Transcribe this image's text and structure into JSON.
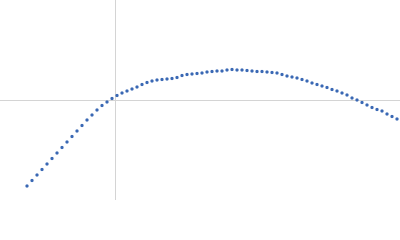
{
  "chart_data": {
    "type": "scatter",
    "x": [
      -88,
      -83,
      -78,
      -73,
      -68,
      -63,
      -58,
      -53,
      -48,
      -43,
      -38,
      -33,
      -28,
      -23,
      -18,
      -13,
      -8,
      -3,
      2,
      7,
      12,
      17,
      22,
      27,
      32,
      37,
      42,
      47,
      52,
      57,
      62,
      67,
      72,
      77,
      82,
      87,
      92,
      97,
      102,
      107,
      112,
      117,
      122,
      127,
      132,
      137,
      142,
      147,
      152,
      157,
      162,
      167,
      172,
      177,
      182,
      187,
      192,
      197,
      202,
      207,
      212,
      217,
      222,
      227,
      232,
      237,
      242,
      247,
      252,
      257,
      262,
      267,
      272,
      277,
      282
    ],
    "values": [
      -86,
      -80.5,
      -75,
      -69.5,
      -64,
      -58.5,
      -53,
      -47.5,
      -42,
      -36.5,
      -31,
      -25.5,
      -20,
      -15,
      -10,
      -5.5,
      -2,
      1.5,
      4.5,
      7,
      9,
      11,
      13,
      15.5,
      17.5,
      19,
      20,
      20.5,
      21,
      21.5,
      22.5,
      24.5,
      25.5,
      26,
      26.5,
      27,
      28,
      28.5,
      29,
      29,
      30,
      30.5,
      30,
      30,
      29.5,
      29,
      28.5,
      28.5,
      28,
      27.5,
      27,
      25.5,
      24,
      23,
      22,
      20.5,
      19,
      17,
      15.5,
      14,
      12.5,
      10.5,
      9,
      7,
      5,
      2,
      0,
      -2.5,
      -5,
      -7.5,
      -9.5,
      -11,
      -14,
      -16.5,
      -19
    ],
    "color": "#3a68b4",
    "xlim": [
      -115,
      285
    ],
    "ylim": [
      -100,
      100
    ],
    "xticks": [
      0
    ],
    "yticks": [
      0
    ],
    "grid": true,
    "tick_labels": false
  }
}
